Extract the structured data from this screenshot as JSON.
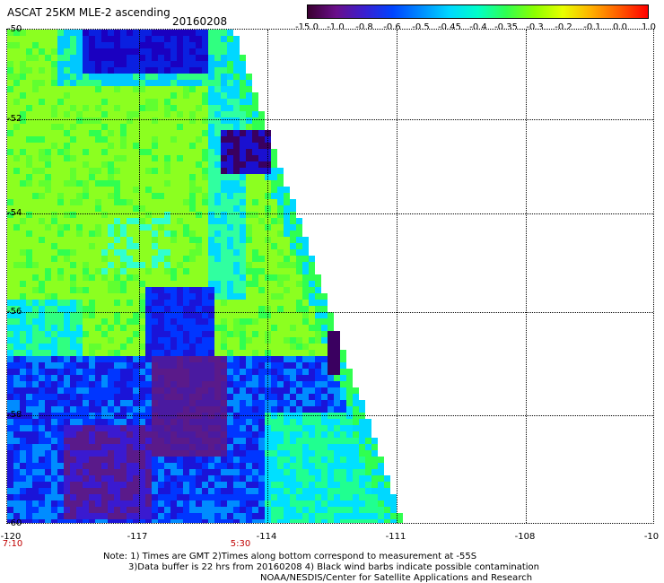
{
  "header": {
    "title": "ASCAT 25KM MLE-2 ascending",
    "date": "20160208"
  },
  "colorbar": {
    "labels": [
      "-15.0",
      "-1.0",
      "-0.8",
      "-0.6",
      "-0.5",
      "-0.45",
      "-0.4",
      "-0.35",
      "-0.3",
      "-0.2",
      "-0.1",
      "0.0",
      "1.0"
    ],
    "colors": [
      "#3a0030",
      "#6a0f8a",
      "#3a1fd0",
      "#0044ff",
      "#008cff",
      "#00d8ff",
      "#00ffc8",
      "#30ff50",
      "#8cff00",
      "#e8ff00",
      "#ffb000",
      "#ff5a00",
      "#ff0000"
    ]
  },
  "map": {
    "lat_labels": [
      "-50",
      "-52",
      "-54",
      "-56",
      "-58",
      "-60"
    ],
    "lon_labels": [
      "-120",
      "-117",
      "-114",
      "-111",
      "-108",
      "-10"
    ],
    "time_labels": [
      "7:10",
      "5:30"
    ]
  },
  "notes": {
    "line1": "Note: 1) Times are GMT 2)Times along bottom correspond to measurement at -55S",
    "line2": "3)Data buffer is 22 hrs from 20160208 4) Black wind barbs indicate possible contamination",
    "line3": "NOAA/NESDIS/Center for Satellite Applications and Research"
  }
}
